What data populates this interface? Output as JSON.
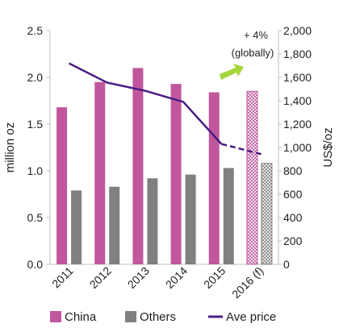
{
  "chart_data": {
    "type": "bar",
    "categories": [
      "2011",
      "2012",
      "2013",
      "2014",
      "2015",
      "2016 (f)"
    ],
    "forecast_category": "2016 (f)",
    "series": [
      {
        "name": "China",
        "kind": "bar",
        "axis": "left",
        "values": [
          1.68,
          1.95,
          2.1,
          1.93,
          1.84,
          1.85
        ]
      },
      {
        "name": "Others",
        "kind": "bar",
        "axis": "left",
        "values": [
          0.79,
          0.83,
          0.92,
          0.96,
          1.03,
          1.08
        ]
      },
      {
        "name": "Ave price",
        "kind": "line",
        "axis": "right",
        "values": [
          1720,
          1555,
          1485,
          1390,
          1030,
          940
        ]
      }
    ],
    "ylabel_left": "million oz",
    "ylabel_right": "US$/oz",
    "ylim_left": [
      0,
      2.5
    ],
    "ylim_right": [
      0,
      2000
    ],
    "yticks_left": [
      "0.0",
      "0.5",
      "1.0",
      "1.5",
      "2.0",
      "2.5"
    ],
    "yticks_right": [
      "0",
      "200",
      "400",
      "600",
      "800",
      "1,000",
      "1,200",
      "1,400",
      "1,600",
      "1,800",
      "2,000"
    ],
    "annotation": {
      "line1": "+ 4%",
      "line2": "(globally)"
    },
    "colors": {
      "china": "#c0579d",
      "others": "#808080",
      "price": "#4b1c84",
      "arrow": "#a5d63b"
    },
    "legend": [
      "China",
      "Others",
      "Ave price"
    ],
    "legend_position": "bottom",
    "grid": false
  }
}
